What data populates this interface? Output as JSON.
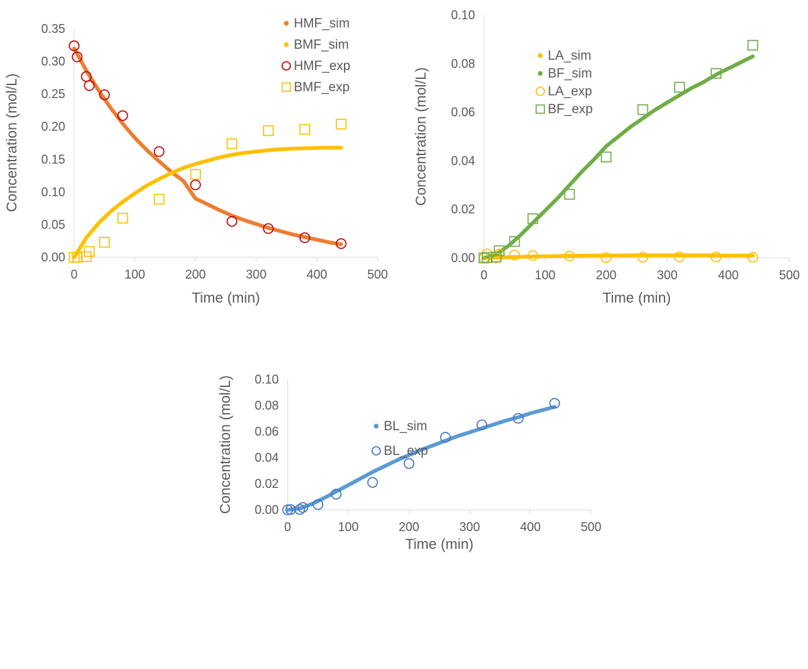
{
  "chart_data": [
    {
      "type": "scatter",
      "xlabel": "Time (min)",
      "ylabel": "Concentration (mol/L)",
      "xlim": [
        0,
        500
      ],
      "ylim": [
        0,
        0.35
      ],
      "xticks": [
        "0",
        "100",
        "200",
        "300",
        "400",
        "500"
      ],
      "yticks": [
        "0.00",
        "0.05",
        "0.10",
        "0.15",
        "0.20",
        "0.25",
        "0.30",
        "0.35"
      ],
      "grid": false,
      "legend": "top-right",
      "series": [
        {
          "name": "HMF_sim",
          "style": "line",
          "color": "#ed7d31",
          "x": [
            0,
            20,
            40,
            60,
            80,
            100,
            120,
            140,
            160,
            180,
            200,
            220,
            240,
            260,
            280,
            300,
            320,
            340,
            360,
            380,
            400,
            420,
            440
          ],
          "y": [
            0.32,
            0.286,
            0.256,
            0.229,
            0.205,
            0.183,
            0.164,
            0.147,
            0.131,
            0.117,
            0.09,
            0.081,
            0.072,
            0.064,
            0.057,
            0.051,
            0.045,
            0.04,
            0.035,
            0.031,
            0.027,
            0.023,
            0.02
          ]
        },
        {
          "name": "BMF_sim",
          "style": "line",
          "color": "#ffc000",
          "x": [
            0,
            20,
            40,
            60,
            80,
            100,
            120,
            140,
            160,
            180,
            200,
            220,
            240,
            260,
            280,
            300,
            320,
            340,
            360,
            380,
            400,
            420,
            440
          ],
          "y": [
            0.0,
            0.03,
            0.052,
            0.07,
            0.085,
            0.098,
            0.11,
            0.12,
            0.129,
            0.137,
            0.143,
            0.148,
            0.153,
            0.157,
            0.16,
            0.162,
            0.164,
            0.1655,
            0.1665,
            0.167,
            0.1675,
            0.168,
            0.168
          ]
        },
        {
          "name": "HMF_exp",
          "style": "circle",
          "color": "#c00000",
          "x": [
            0,
            5,
            20,
            25,
            50,
            80,
            140,
            200,
            260,
            320,
            380,
            440
          ],
          "y": [
            0.324,
            0.307,
            0.277,
            0.263,
            0.249,
            0.217,
            0.162,
            0.111,
            0.055,
            0.044,
            0.03,
            0.021
          ]
        },
        {
          "name": "BMF_exp",
          "style": "square",
          "color": "#ffc000",
          "x": [
            0,
            5,
            20,
            25,
            50,
            80,
            140,
            200,
            260,
            320,
            380,
            440
          ],
          "y": [
            0.0,
            0.0,
            0.001,
            0.009,
            0.023,
            0.06,
            0.089,
            0.127,
            0.174,
            0.194,
            0.196,
            0.204
          ]
        }
      ]
    },
    {
      "type": "scatter",
      "xlabel": "Time (min)",
      "ylabel": "Concentration (mol/L)",
      "xlim": [
        0,
        500
      ],
      "ylim": [
        0,
        0.1
      ],
      "xticks": [
        "0",
        "100",
        "200",
        "300",
        "400",
        "500"
      ],
      "yticks": [
        "0.00",
        "0.02",
        "0.04",
        "0.06",
        "0.08",
        "0.10"
      ],
      "grid": false,
      "legend": "top-left",
      "series": [
        {
          "name": "LA_sim",
          "style": "line",
          "color": "#ffc000",
          "x": [
            0,
            50,
            100,
            150,
            200,
            250,
            300,
            350,
            400,
            440
          ],
          "y": [
            0.0,
            0.0004,
            0.0007,
            0.0009,
            0.001,
            0.0011,
            0.0011,
            0.0011,
            0.001,
            0.001
          ]
        },
        {
          "name": "BF_sim",
          "style": "line",
          "color": "#70ad47",
          "x": [
            0,
            20,
            40,
            60,
            80,
            100,
            120,
            140,
            160,
            180,
            200,
            220,
            240,
            260,
            280,
            300,
            320,
            340,
            360,
            380,
            400,
            420,
            440
          ],
          "y": [
            0.0,
            0.0015,
            0.005,
            0.0095,
            0.0145,
            0.0195,
            0.0245,
            0.03,
            0.0355,
            0.0405,
            0.046,
            0.05,
            0.054,
            0.0575,
            0.061,
            0.064,
            0.067,
            0.07,
            0.0725,
            0.0755,
            0.078,
            0.0805,
            0.083
          ]
        },
        {
          "name": "LA_exp",
          "style": "circle",
          "color": "#ffc000",
          "x": [
            0,
            5,
            20,
            25,
            50,
            80,
            140,
            200,
            260,
            320,
            380,
            440
          ],
          "y": [
            0.0,
            0.0017,
            0.0,
            0.0016,
            0.0012,
            0.001,
            0.0008,
            0.0002,
            0.0003,
            0.0004,
            0.0004,
            0.0003
          ]
        },
        {
          "name": "BF_exp",
          "style": "square",
          "color": "#70ad47",
          "x": [
            0,
            5,
            20,
            25,
            50,
            80,
            140,
            200,
            260,
            320,
            380,
            440
          ],
          "y": [
            0.0,
            0.0002,
            0.0004,
            0.003,
            0.0068,
            0.0162,
            0.0262,
            0.0416,
            0.0611,
            0.0703,
            0.076,
            0.0876
          ]
        }
      ]
    },
    {
      "type": "scatter",
      "xlabel": "Time (min)",
      "ylabel": "Concentration (mol/L)",
      "xlim": [
        0,
        500
      ],
      "ylim": [
        0,
        0.1
      ],
      "xticks": [
        "0",
        "100",
        "200",
        "300",
        "400",
        "500"
      ],
      "yticks": [
        "0.00",
        "0.02",
        "0.04",
        "0.06",
        "0.08",
        "0.10"
      ],
      "grid": false,
      "legend": "top-center",
      "series": [
        {
          "name": "BL_sim",
          "style": "line",
          "color": "#5b9bd5",
          "x": [
            0,
            20,
            40,
            60,
            80,
            100,
            120,
            140,
            160,
            180,
            200,
            220,
            240,
            260,
            280,
            300,
            320,
            340,
            360,
            380,
            400,
            420,
            440
          ],
          "y": [
            0.0,
            0.001,
            0.0045,
            0.009,
            0.014,
            0.019,
            0.024,
            0.029,
            0.0335,
            0.038,
            0.042,
            0.046,
            0.0495,
            0.053,
            0.0565,
            0.0595,
            0.0625,
            0.0655,
            0.0685,
            0.071,
            0.074,
            0.0765,
            0.079
          ]
        },
        {
          "name": "BL_exp",
          "style": "circle",
          "color": "#4472c4",
          "x": [
            0,
            5,
            20,
            25,
            50,
            80,
            140,
            200,
            260,
            320,
            380,
            440
          ],
          "y": [
            0.0,
            0.0002,
            0.0003,
            0.0018,
            0.004,
            0.012,
            0.021,
            0.0355,
            0.0556,
            0.0652,
            0.0702,
            0.0817
          ]
        }
      ]
    }
  ]
}
